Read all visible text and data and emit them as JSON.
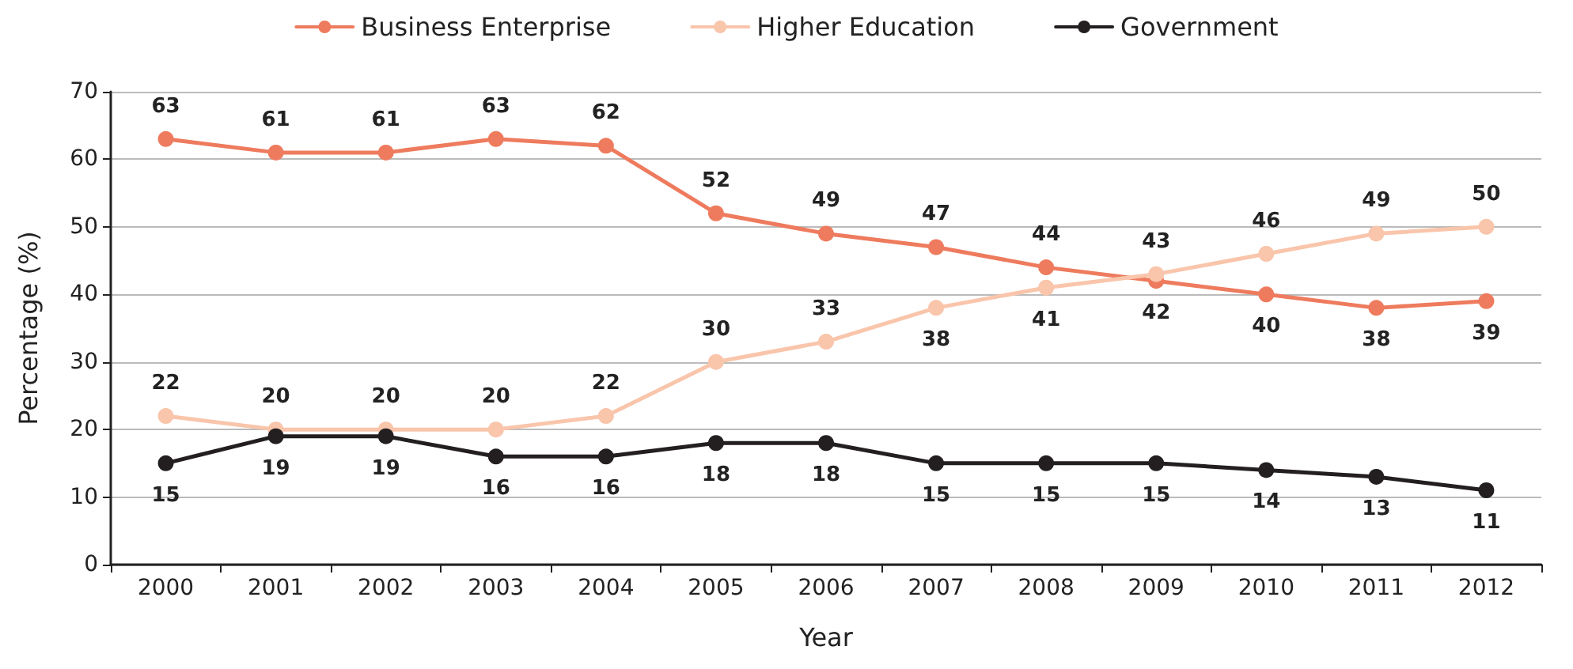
{
  "chart_data": {
    "type": "line",
    "xlabel": "Year",
    "ylabel": "Percentage (%)",
    "categories": [
      "2000",
      "2001",
      "2002",
      "2003",
      "2004",
      "2005",
      "2006",
      "2007",
      "2008",
      "2009",
      "2010",
      "2011",
      "2012"
    ],
    "series": [
      {
        "name": "Business Enterprise",
        "color": "#ee7b5e",
        "values": [
          63,
          61,
          61,
          63,
          62,
          52,
          49,
          47,
          44,
          42,
          40,
          38,
          39
        ]
      },
      {
        "name": "Higher Education",
        "color": "#f9c5ab",
        "values": [
          22,
          20,
          20,
          20,
          22,
          30,
          33,
          38,
          41,
          43,
          46,
          49,
          50
        ]
      },
      {
        "name": "Government",
        "color": "#231f20",
        "values": [
          15,
          19,
          19,
          16,
          16,
          18,
          18,
          15,
          15,
          15,
          14,
          13,
          11
        ]
      }
    ],
    "ylim": [
      0,
      70
    ],
    "yticks": [
      0,
      10,
      20,
      30,
      40,
      50,
      60,
      70
    ],
    "grid": "y",
    "legend": "top",
    "marker": "circle",
    "line_style": "solid",
    "data_labels": true
  }
}
